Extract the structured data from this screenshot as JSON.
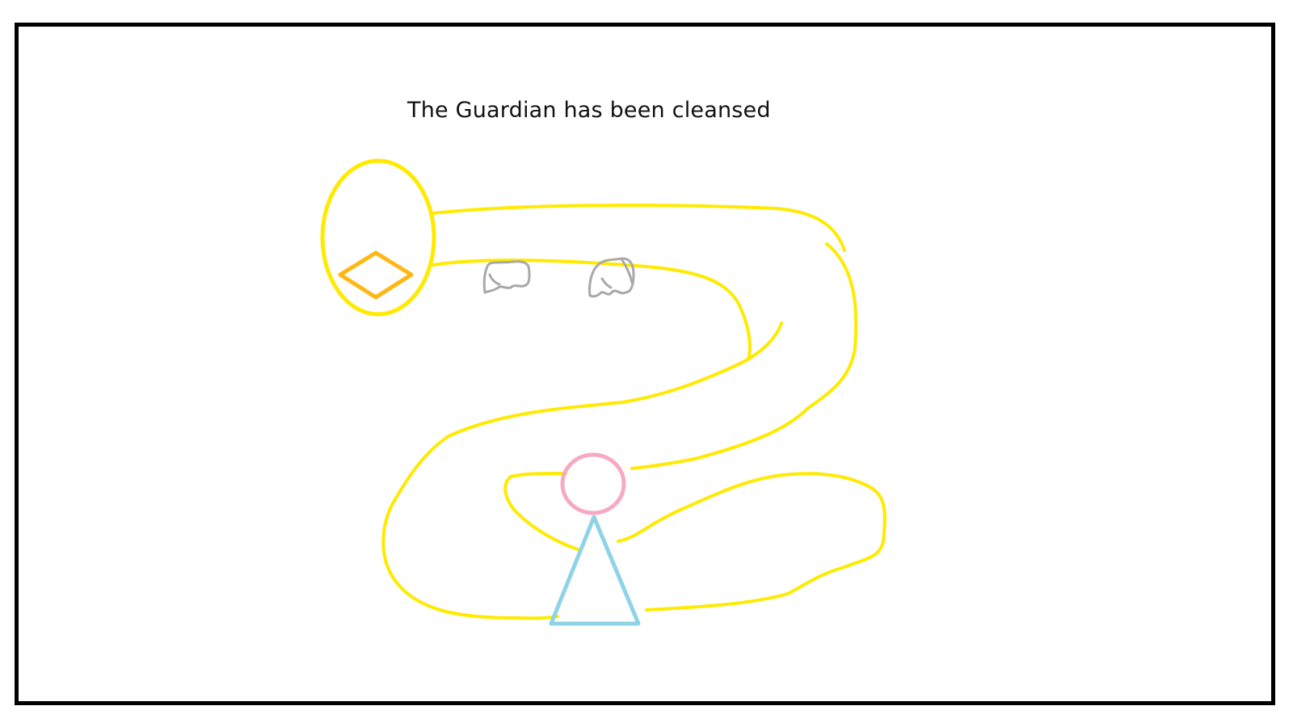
{
  "game": {
    "status_message": "The Guardian has been cleansed"
  },
  "colors": {
    "border": "#000000",
    "background": "#ffffff",
    "path": "#ffea00",
    "crystal": "#ffb812",
    "player_head": "#f7a9c4",
    "player_body": "#8fd3e6",
    "ghost": "#a8a8a8"
  },
  "icons": {
    "goal_portal": "ellipse-portal-icon",
    "crystal": "diamond-icon",
    "ghosts": [
      "ghost-icon",
      "ghost-icon"
    ],
    "player": "player-triangle-icon"
  }
}
